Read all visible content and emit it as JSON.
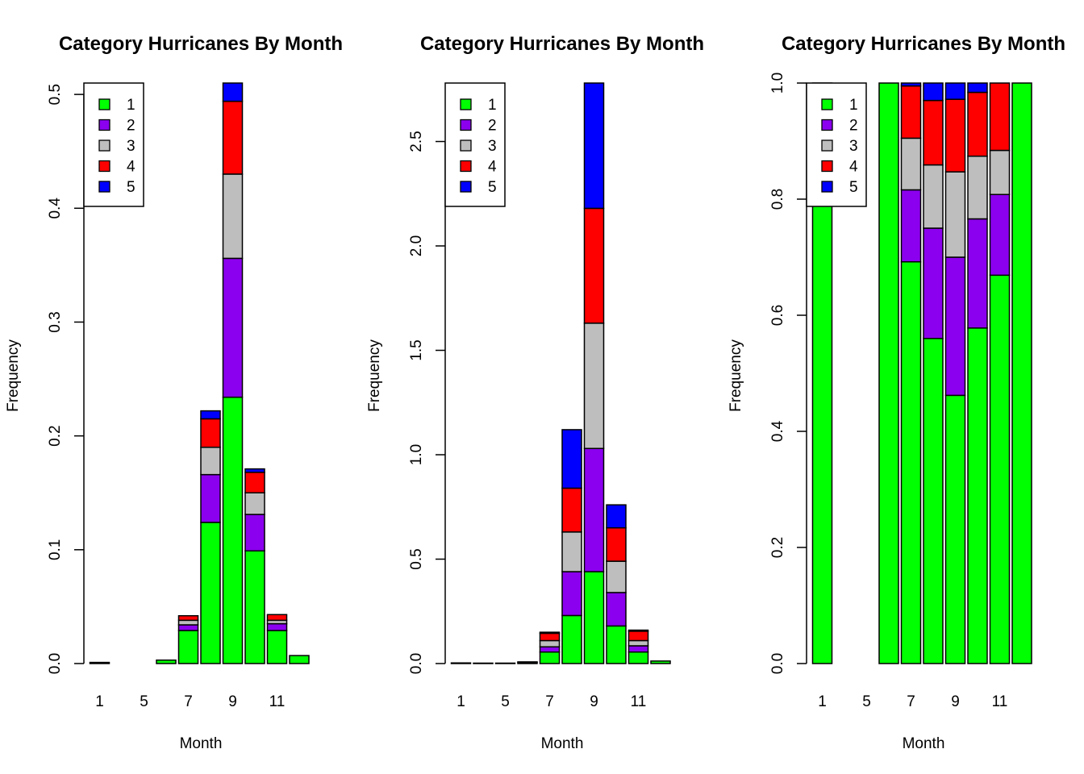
{
  "chart_data": [
    {
      "type": "bar",
      "stacked": true,
      "title": "Category Hurricanes By Month",
      "xlabel": "Month",
      "ylabel": "Frequency",
      "ylim": [
        0,
        0.51
      ],
      "yticks": [
        "0.0",
        "0.1",
        "0.2",
        "0.3",
        "0.4",
        "0.5"
      ],
      "categories": [
        "1",
        "",
        "5",
        "6",
        "7",
        "8",
        "9",
        "10",
        "11",
        "12"
      ],
      "xtick_labels": [
        "1",
        "5",
        "7",
        "9",
        "11"
      ],
      "legend": {
        "position": "top-left"
      },
      "series": [
        {
          "name": "1",
          "color": "#00ff00",
          "values": [
            0.001,
            0,
            0,
            0.003,
            0.029,
            0.124,
            0.234,
            0.099,
            0.029,
            0.007
          ]
        },
        {
          "name": "2",
          "color": "#8b00ee",
          "values": [
            0,
            0,
            0,
            0,
            0.005,
            0.042,
            0.122,
            0.032,
            0.006,
            0
          ]
        },
        {
          "name": "3",
          "color": "#bebebe",
          "values": [
            0,
            0,
            0,
            0,
            0.004,
            0.024,
            0.074,
            0.019,
            0.003,
            0
          ]
        },
        {
          "name": "4",
          "color": "#ff0000",
          "values": [
            0,
            0,
            0,
            0,
            0.004,
            0.025,
            0.064,
            0.018,
            0.005,
            0
          ]
        },
        {
          "name": "5",
          "color": "#0000ff",
          "values": [
            0,
            0,
            0,
            0,
            0,
            0.007,
            0.016,
            0.003,
            0,
            0
          ]
        }
      ]
    },
    {
      "type": "bar",
      "stacked": true,
      "title": "Category Hurricanes By Month",
      "xlabel": "Month",
      "ylabel": "Frequency",
      "ylim": [
        0,
        2.78
      ],
      "yticks": [
        "0.0",
        "0.5",
        "1.0",
        "1.5",
        "2.0",
        "2.5"
      ],
      "categories": [
        "1",
        "",
        "5",
        "6",
        "7",
        "8",
        "9",
        "10",
        "11",
        "12"
      ],
      "xtick_labels": [
        "1",
        "5",
        "7",
        "9",
        "11"
      ],
      "legend": {
        "position": "top-left"
      },
      "series": [
        {
          "name": "1",
          "color": "#00ff00",
          "values": [
            0.003,
            0.002,
            0.002,
            0.005,
            0.055,
            0.23,
            0.44,
            0.18,
            0.055,
            0.012
          ]
        },
        {
          "name": "2",
          "color": "#8b00ee",
          "values": [
            0,
            0,
            0,
            0.003,
            0.025,
            0.21,
            0.59,
            0.16,
            0.03,
            0
          ]
        },
        {
          "name": "3",
          "color": "#bebebe",
          "values": [
            0,
            0,
            0,
            0,
            0.03,
            0.19,
            0.6,
            0.15,
            0.025,
            0
          ]
        },
        {
          "name": "4",
          "color": "#ff0000",
          "values": [
            0,
            0,
            0,
            0,
            0.035,
            0.21,
            0.55,
            0.16,
            0.045,
            0
          ]
        },
        {
          "name": "5",
          "color": "#0000ff",
          "values": [
            0,
            0,
            0,
            0,
            0.005,
            0.28,
            0.6,
            0.11,
            0.005,
            0
          ]
        }
      ]
    },
    {
      "type": "bar",
      "stacked": true,
      "title": "Category Hurricanes By Month",
      "xlabel": "Month",
      "ylabel": "Frequency",
      "ylim": [
        0,
        1.0
      ],
      "yticks": [
        "0.0",
        "0.2",
        "0.4",
        "0.6",
        "0.8",
        "1.0"
      ],
      "categories": [
        "1",
        "",
        "5",
        "6",
        "7",
        "8",
        "9",
        "10",
        "11",
        "12"
      ],
      "xtick_labels": [
        "1",
        "5",
        "7",
        "9",
        "11"
      ],
      "legend": {
        "position": "top-left"
      },
      "series": [
        {
          "name": "1",
          "color": "#00ff00",
          "values": [
            1.0,
            0,
            0,
            1.0,
            0.692,
            0.56,
            0.462,
            0.578,
            0.669,
            1.0
          ]
        },
        {
          "name": "2",
          "color": "#8b00ee",
          "values": [
            0,
            0,
            0,
            0,
            0.124,
            0.19,
            0.238,
            0.188,
            0.139,
            0
          ]
        },
        {
          "name": "3",
          "color": "#bebebe",
          "values": [
            0,
            0,
            0,
            0,
            0.089,
            0.109,
            0.147,
            0.108,
            0.076,
            0
          ]
        },
        {
          "name": "4",
          "color": "#ff0000",
          "values": [
            0,
            0,
            0,
            0,
            0.09,
            0.111,
            0.125,
            0.11,
            0.116,
            0
          ]
        },
        {
          "name": "5",
          "color": "#0000ff",
          "values": [
            0,
            0,
            0,
            0,
            0.005,
            0.03,
            0.028,
            0.016,
            0,
            0
          ]
        }
      ]
    }
  ]
}
